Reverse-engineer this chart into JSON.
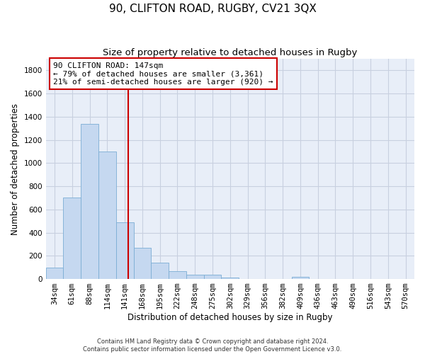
{
  "title": "90, CLIFTON ROAD, RUGBY, CV21 3QX",
  "subtitle": "Size of property relative to detached houses in Rugby",
  "xlabel": "Distribution of detached houses by size in Rugby",
  "ylabel": "Number of detached properties",
  "footer_line1": "Contains HM Land Registry data © Crown copyright and database right 2024.",
  "footer_line2": "Contains public sector information licensed under the Open Government Licence v3.0.",
  "categories": [
    "34sqm",
    "61sqm",
    "88sqm",
    "114sqm",
    "141sqm",
    "168sqm",
    "195sqm",
    "222sqm",
    "248sqm",
    "275sqm",
    "302sqm",
    "329sqm",
    "356sqm",
    "382sqm",
    "409sqm",
    "436sqm",
    "463sqm",
    "490sqm",
    "516sqm",
    "543sqm",
    "570sqm"
  ],
  "values": [
    100,
    700,
    1340,
    1100,
    490,
    270,
    140,
    70,
    35,
    35,
    15,
    0,
    0,
    0,
    20,
    0,
    0,
    0,
    0,
    0,
    0
  ],
  "bar_color": "#c5d8f0",
  "bar_edge_color": "#7badd4",
  "vline_color": "#cc0000",
  "vline_pos": 4.18,
  "annotation_text": "90 CLIFTON ROAD: 147sqm\n← 79% of detached houses are smaller (3,361)\n21% of semi-detached houses are larger (920) →",
  "annotation_box_color": "#cc0000",
  "ylim": [
    0,
    1900
  ],
  "yticks": [
    0,
    200,
    400,
    600,
    800,
    1000,
    1200,
    1400,
    1600,
    1800
  ],
  "grid_color": "#c8d0e0",
  "bg_color": "#e8eef8",
  "title_fontsize": 11,
  "subtitle_fontsize": 9.5,
  "axis_label_fontsize": 8.5,
  "tick_fontsize": 7.5,
  "annotation_fontsize": 8,
  "footer_fontsize": 6
}
